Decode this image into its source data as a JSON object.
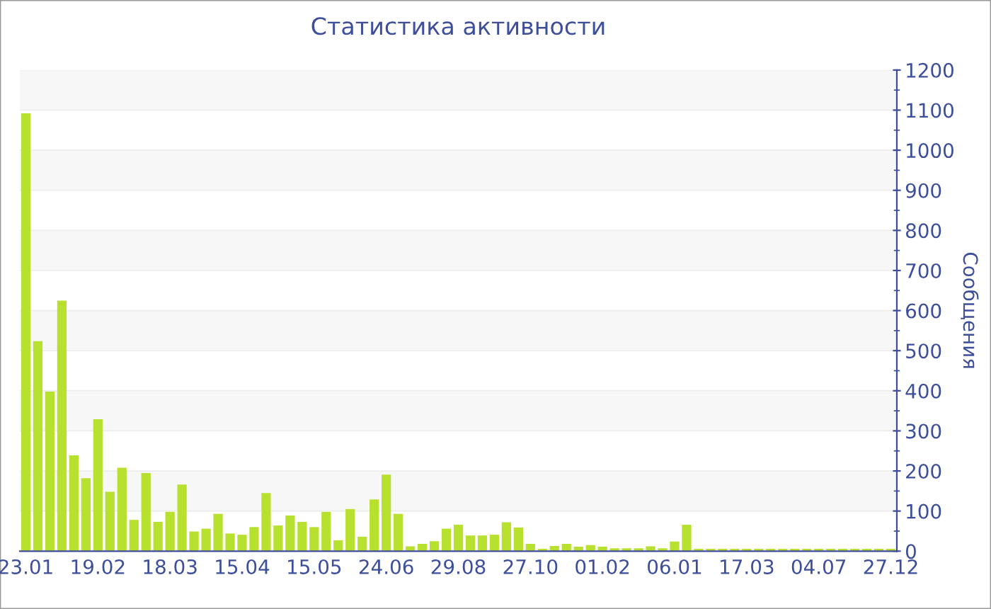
{
  "chart_data": {
    "type": "bar",
    "title": "Статистика активности",
    "ylabel": "Сообщения",
    "categories": [
      "23.01",
      null,
      null,
      null,
      null,
      null,
      "19.02",
      null,
      null,
      null,
      null,
      null,
      "18.03",
      null,
      null,
      null,
      null,
      null,
      "15.04",
      null,
      null,
      null,
      null,
      null,
      "15.05",
      null,
      null,
      null,
      null,
      null,
      "24.06",
      null,
      null,
      null,
      null,
      null,
      "29.08",
      null,
      null,
      null,
      null,
      null,
      "27.10",
      null,
      null,
      null,
      null,
      null,
      "01.02",
      null,
      null,
      null,
      null,
      null,
      "06.01",
      null,
      null,
      null,
      null,
      null,
      "17.03",
      null,
      null,
      null,
      null,
      null,
      "04.07",
      null,
      null,
      null,
      null,
      null,
      "27.12"
    ],
    "values": [
      1092,
      524,
      398,
      625,
      239,
      182,
      329,
      148,
      208,
      78,
      195,
      73,
      98,
      166,
      49,
      56,
      93,
      44,
      41,
      60,
      145,
      64,
      89,
      73,
      60,
      98,
      27,
      105,
      36,
      129,
      191,
      93,
      12,
      18,
      25,
      56,
      66,
      39,
      39,
      41,
      72,
      59,
      18,
      6,
      13,
      18,
      11,
      15,
      11,
      7,
      7,
      7,
      12,
      7,
      24,
      66,
      6,
      6,
      6,
      6,
      6,
      6,
      6,
      6,
      6,
      6,
      6,
      6,
      6,
      6,
      6,
      6,
      6
    ],
    "color": "#b8e02e",
    "ylim": [
      0,
      1200
    ],
    "yticks": [
      0,
      100,
      200,
      300,
      400,
      500,
      600,
      700,
      800,
      900,
      1000,
      1100,
      1200
    ],
    "grid": "y",
    "legend": false
  }
}
